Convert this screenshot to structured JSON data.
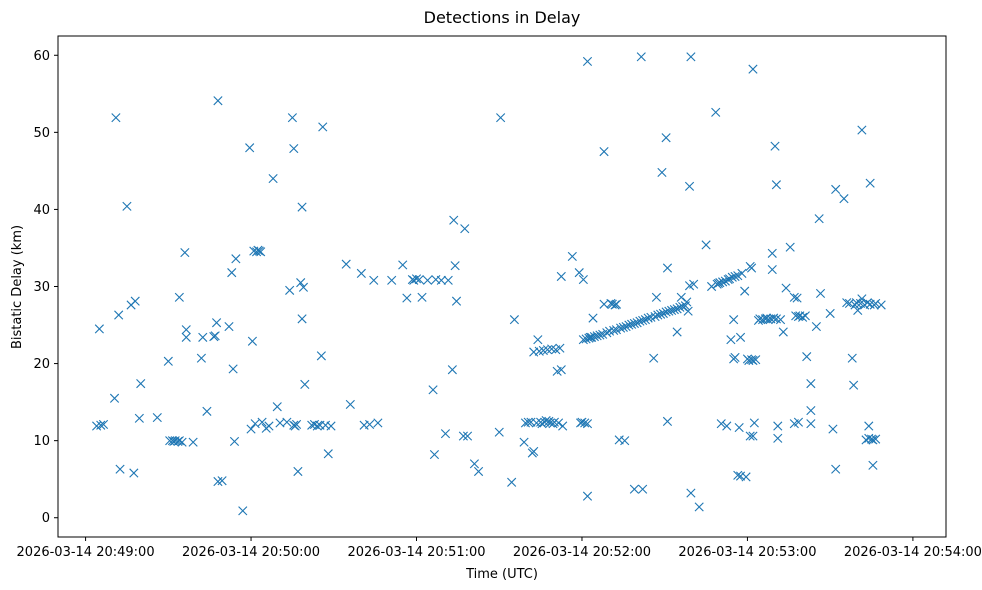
{
  "chart_data": {
    "type": "scatter",
    "title": "Detections in Delay",
    "xlabel": "Time (UTC)",
    "ylabel": "Bistatic Delay (km)",
    "marker": "x",
    "marker_color": "#1f77b4",
    "x_unit": "seconds since 2026-03-14 20:49:00",
    "xlim": [
      -10,
      312
    ],
    "ylim": [
      -2.5,
      62.5
    ],
    "x_ticks": [
      {
        "value": 0,
        "label": "2026-03-14 20:49:00"
      },
      {
        "value": 60,
        "label": "2026-03-14 20:50:00"
      },
      {
        "value": 120,
        "label": "2026-03-14 20:51:00"
      },
      {
        "value": 180,
        "label": "2026-03-14 20:52:00"
      },
      {
        "value": 240,
        "label": "2026-03-14 20:53:00"
      },
      {
        "value": 300,
        "label": "2026-03-14 20:54:00"
      }
    ],
    "y_ticks": [
      {
        "value": 0,
        "label": "0"
      },
      {
        "value": 10,
        "label": "10"
      },
      {
        "value": 20,
        "label": "20"
      },
      {
        "value": 30,
        "label": "30"
      },
      {
        "value": 40,
        "label": "40"
      },
      {
        "value": 50,
        "label": "50"
      },
      {
        "value": 60,
        "label": "60"
      }
    ],
    "points": [
      [
        4,
        11.9
      ],
      [
        5,
        24.5
      ],
      [
        5.5,
        12.0
      ],
      [
        6.5,
        12.1
      ],
      [
        10.5,
        15.5
      ],
      [
        11,
        51.9
      ],
      [
        12,
        26.3
      ],
      [
        12.5,
        6.3
      ],
      [
        15,
        40.4
      ],
      [
        16.5,
        27.6
      ],
      [
        17.5,
        5.8
      ],
      [
        18,
        28.1
      ],
      [
        19.5,
        12.9
      ],
      [
        20,
        17.4
      ],
      [
        26,
        13.0
      ],
      [
        30,
        20.3
      ],
      [
        30.5,
        10.0
      ],
      [
        31.5,
        10.0
      ],
      [
        32,
        9.9
      ],
      [
        32.5,
        10.0
      ],
      [
        33.5,
        9.9
      ],
      [
        34,
        10.0
      ],
      [
        35,
        9.8
      ],
      [
        34,
        28.6
      ],
      [
        36,
        34.4
      ],
      [
        36.5,
        24.4
      ],
      [
        36.5,
        23.4
      ],
      [
        39,
        9.8
      ],
      [
        42,
        20.7
      ],
      [
        42.5,
        23.4
      ],
      [
        44,
        13.8
      ],
      [
        46.5,
        23.5
      ],
      [
        47,
        23.6
      ],
      [
        47.5,
        25.3
      ],
      [
        48,
        4.7
      ],
      [
        48,
        54.1
      ],
      [
        49.5,
        4.8
      ],
      [
        52,
        24.8
      ],
      [
        53,
        31.8
      ],
      [
        53.5,
        19.3
      ],
      [
        54,
        9.9
      ],
      [
        54.5,
        33.6
      ],
      [
        57,
        0.9
      ],
      [
        59.5,
        48.0
      ],
      [
        60,
        11.5
      ],
      [
        60.5,
        22.9
      ],
      [
        61,
        34.6
      ],
      [
        61.5,
        12.2
      ],
      [
        62,
        34.5
      ],
      [
        62.5,
        34.7
      ],
      [
        63,
        34.6
      ],
      [
        63.5,
        34.5
      ],
      [
        64,
        12.4
      ],
      [
        65.5,
        11.6
      ],
      [
        66.5,
        11.9
      ],
      [
        68,
        44.0
      ],
      [
        69.5,
        14.4
      ],
      [
        70.5,
        12.3
      ],
      [
        73,
        12.4
      ],
      [
        74,
        29.5
      ],
      [
        75,
        51.9
      ],
      [
        75.5,
        47.9
      ],
      [
        75.5,
        12.0
      ],
      [
        76,
        11.9
      ],
      [
        76.5,
        12.1
      ],
      [
        77,
        6.0
      ],
      [
        78,
        30.5
      ],
      [
        78.5,
        40.3
      ],
      [
        78.5,
        25.8
      ],
      [
        79,
        29.9
      ],
      [
        79.5,
        17.3
      ],
      [
        82,
        12.0
      ],
      [
        83,
        12.1
      ],
      [
        84,
        11.9
      ],
      [
        85,
        12.0
      ],
      [
        85.5,
        21.0
      ],
      [
        86,
        50.7
      ],
      [
        87,
        12.0
      ],
      [
        88,
        8.3
      ],
      [
        89,
        11.9
      ],
      [
        94.5,
        32.9
      ],
      [
        96,
        14.7
      ],
      [
        100,
        31.7
      ],
      [
        101,
        12.0
      ],
      [
        103,
        12.1
      ],
      [
        104.5,
        30.8
      ],
      [
        106,
        12.3
      ],
      [
        111,
        30.8
      ],
      [
        115,
        32.8
      ],
      [
        116.5,
        28.5
      ],
      [
        118.5,
        30.9
      ],
      [
        119,
        30.8
      ],
      [
        120,
        31.0
      ],
      [
        121,
        30.9
      ],
      [
        122,
        28.6
      ],
      [
        124,
        30.8
      ],
      [
        126,
        16.6
      ],
      [
        126.5,
        8.2
      ],
      [
        127,
        30.9
      ],
      [
        129,
        30.8
      ],
      [
        130.5,
        10.9
      ],
      [
        131.5,
        30.8
      ],
      [
        133,
        19.2
      ],
      [
        133.5,
        38.6
      ],
      [
        134,
        32.7
      ],
      [
        134.5,
        28.1
      ],
      [
        137,
        10.6
      ],
      [
        137.5,
        37.5
      ],
      [
        138.5,
        10.6
      ],
      [
        141,
        7.0
      ],
      [
        142.5,
        6.0
      ],
      [
        150,
        11.1
      ],
      [
        150.5,
        51.9
      ],
      [
        154.5,
        4.6
      ],
      [
        155.5,
        25.7
      ],
      [
        159,
        9.8
      ],
      [
        159.5,
        12.3
      ],
      [
        160.5,
        12.4
      ],
      [
        161.5,
        12.4
      ],
      [
        162,
        8.4
      ],
      [
        162.5,
        8.6
      ],
      [
        162.5,
        21.5
      ],
      [
        163.5,
        12.3
      ],
      [
        164,
        23.1
      ],
      [
        164.5,
        21.6
      ],
      [
        165,
        12.4
      ],
      [
        165.5,
        12.2
      ],
      [
        166,
        21.7
      ],
      [
        166.5,
        12.4
      ],
      [
        167,
        12.6
      ],
      [
        167.5,
        21.8
      ],
      [
        168,
        12.5
      ],
      [
        168.5,
        12.3
      ],
      [
        169,
        21.9
      ],
      [
        169.5,
        12.2
      ],
      [
        170,
        12.4
      ],
      [
        170.5,
        21.8
      ],
      [
        171,
        19.0
      ],
      [
        171.5,
        12.3
      ],
      [
        172,
        22.0
      ],
      [
        172.5,
        19.2
      ],
      [
        172.5,
        31.3
      ],
      [
        173,
        11.9
      ],
      [
        176.5,
        33.9
      ],
      [
        179,
        31.8
      ],
      [
        179.5,
        12.3
      ],
      [
        180,
        12.4
      ],
      [
        180.5,
        30.9
      ],
      [
        180.5,
        23.1
      ],
      [
        181,
        12.3
      ],
      [
        181.5,
        23.2
      ],
      [
        182,
        12.2
      ],
      [
        182,
        59.2
      ],
      [
        182,
        2.8
      ],
      [
        182.5,
        23.3
      ],
      [
        183,
        23.4
      ],
      [
        183.5,
        23.4
      ],
      [
        184,
        25.9
      ],
      [
        184.5,
        23.5
      ],
      [
        185.5,
        23.6
      ],
      [
        186.5,
        23.7
      ],
      [
        187.5,
        23.8
      ],
      [
        188,
        47.5
      ],
      [
        188,
        27.7
      ],
      [
        189,
        24.0
      ],
      [
        190,
        24.2
      ],
      [
        190.5,
        27.8
      ],
      [
        191,
        27.7
      ],
      [
        191.5,
        24.3
      ],
      [
        192,
        27.6
      ],
      [
        192.5,
        24.4
      ],
      [
        192.5,
        27.7
      ],
      [
        193.5,
        10.1
      ],
      [
        194,
        24.6
      ],
      [
        195,
        24.7
      ],
      [
        195.5,
        10.0
      ],
      [
        196,
        24.8
      ],
      [
        197,
        25.0
      ],
      [
        198,
        25.1
      ],
      [
        199,
        25.2
      ],
      [
        199,
        3.7
      ],
      [
        200,
        25.3
      ],
      [
        201,
        25.5
      ],
      [
        201.5,
        59.8
      ],
      [
        202,
        3.7
      ],
      [
        202,
        25.6
      ],
      [
        203,
        25.7
      ],
      [
        204,
        25.9
      ],
      [
        205,
        26.0
      ],
      [
        206,
        20.7
      ],
      [
        206.5,
        26.1
      ],
      [
        207,
        28.6
      ],
      [
        207.5,
        26.3
      ],
      [
        208.5,
        26.4
      ],
      [
        209,
        44.8
      ],
      [
        209.5,
        26.5
      ],
      [
        210.5,
        49.3
      ],
      [
        210.5,
        26.7
      ],
      [
        211,
        32.4
      ],
      [
        211,
        12.5
      ],
      [
        211.5,
        26.8
      ],
      [
        212.5,
        26.9
      ],
      [
        213.5,
        27.0
      ],
      [
        214.5,
        24.1
      ],
      [
        214.5,
        27.1
      ],
      [
        215.5,
        27.3
      ],
      [
        216,
        28.6
      ],
      [
        216.5,
        27.4
      ],
      [
        217.5,
        27.5
      ],
      [
        218,
        28.0
      ],
      [
        218.5,
        26.8
      ],
      [
        219,
        43.0
      ],
      [
        219,
        30.1
      ],
      [
        219.5,
        3.2
      ],
      [
        219.5,
        59.8
      ],
      [
        220.5,
        30.3
      ],
      [
        222.5,
        1.4
      ],
      [
        225,
        35.4
      ],
      [
        227,
        30.0
      ],
      [
        228.5,
        52.6
      ],
      [
        229,
        30.3
      ],
      [
        229.5,
        30.4
      ],
      [
        230,
        30.5
      ],
      [
        230.5,
        12.2
      ],
      [
        231,
        30.6
      ],
      [
        232,
        30.7
      ],
      [
        232.5,
        11.9
      ],
      [
        233,
        30.9
      ],
      [
        233.5,
        31.0
      ],
      [
        234,
        23.1
      ],
      [
        234.5,
        31.2
      ],
      [
        235,
        20.6
      ],
      [
        235,
        25.7
      ],
      [
        235.5,
        20.8
      ],
      [
        235.5,
        31.3
      ],
      [
        236.5,
        31.4
      ],
      [
        236.5,
        5.5
      ],
      [
        237,
        11.7
      ],
      [
        237.5,
        5.4
      ],
      [
        237.5,
        23.4
      ],
      [
        238,
        31.7
      ],
      [
        239,
        29.4
      ],
      [
        239.5,
        5.3
      ],
      [
        240,
        20.6
      ],
      [
        240.5,
        20.4
      ],
      [
        241,
        32.6
      ],
      [
        241,
        10.6
      ],
      [
        241.5,
        20.5
      ],
      [
        241.5,
        32.4
      ],
      [
        242,
        10.6
      ],
      [
        242,
        58.2
      ],
      [
        242,
        20.4
      ],
      [
        242.5,
        12.3
      ],
      [
        243,
        20.5
      ],
      [
        244,
        25.6
      ],
      [
        244.5,
        25.8
      ],
      [
        245.5,
        25.7
      ],
      [
        246.5,
        25.8
      ],
      [
        247,
        25.9
      ],
      [
        247.5,
        25.7
      ],
      [
        248.5,
        25.8
      ],
      [
        249,
        34.3
      ],
      [
        249,
        32.2
      ],
      [
        249.5,
        25.9
      ],
      [
        250,
        48.2
      ],
      [
        250.5,
        25.8
      ],
      [
        250.5,
        43.2
      ],
      [
        251,
        11.9
      ],
      [
        251,
        10.3
      ],
      [
        252,
        25.7
      ],
      [
        253,
        24.1
      ],
      [
        254,
        29.8
      ],
      [
        255.5,
        35.1
      ],
      [
        257,
        12.2
      ],
      [
        257,
        28.6
      ],
      [
        257.5,
        26.2
      ],
      [
        258,
        28.5
      ],
      [
        258.5,
        12.4
      ],
      [
        258.5,
        26.1
      ],
      [
        259,
        26.2
      ],
      [
        260,
        26.0
      ],
      [
        261,
        26.2
      ],
      [
        261.5,
        20.9
      ],
      [
        263,
        12.2
      ],
      [
        263,
        13.9
      ],
      [
        263,
        17.4
      ],
      [
        265,
        24.8
      ],
      [
        266,
        38.8
      ],
      [
        266.5,
        29.1
      ],
      [
        270,
        26.5
      ],
      [
        271,
        11.5
      ],
      [
        272,
        42.6
      ],
      [
        272,
        6.3
      ],
      [
        275,
        41.4
      ],
      [
        276,
        27.9
      ],
      [
        277,
        27.8
      ],
      [
        278,
        20.7
      ],
      [
        278.5,
        17.2
      ],
      [
        279,
        27.6
      ],
      [
        279.5,
        27.9
      ],
      [
        280,
        26.9
      ],
      [
        281,
        27.8
      ],
      [
        281.5,
        50.3
      ],
      [
        281.5,
        28.4
      ],
      [
        282.5,
        27.6
      ],
      [
        283,
        10.1
      ],
      [
        283.5,
        27.9
      ],
      [
        284,
        11.9
      ],
      [
        284,
        10.3
      ],
      [
        284.5,
        43.4
      ],
      [
        284.5,
        27.7
      ],
      [
        285,
        10.2
      ],
      [
        285.5,
        10.1
      ],
      [
        285.5,
        6.8
      ],
      [
        286,
        27.6
      ],
      [
        286.5,
        10.2
      ],
      [
        286.5,
        27.8
      ],
      [
        288.5,
        27.6
      ]
    ]
  }
}
